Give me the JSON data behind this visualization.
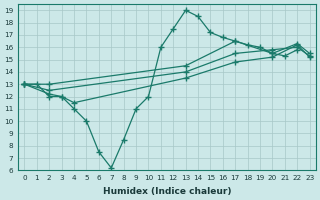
{
  "xlabel": "Humidex (Indice chaleur)",
  "bg_color": "#cce8e8",
  "line_color": "#1a7a6a",
  "grid_color": "#a8c8c8",
  "xlim": [
    -0.5,
    23.5
  ],
  "ylim": [
    6,
    19.5
  ],
  "xticks": [
    0,
    1,
    2,
    3,
    4,
    5,
    6,
    7,
    8,
    9,
    10,
    11,
    12,
    13,
    14,
    15,
    16,
    17,
    18,
    19,
    20,
    21,
    22,
    23
  ],
  "yticks": [
    6,
    7,
    8,
    9,
    10,
    11,
    12,
    13,
    14,
    15,
    16,
    17,
    18,
    19
  ],
  "lines": [
    {
      "x": [
        0,
        1,
        2,
        3,
        4,
        5,
        6,
        7,
        8,
        9,
        10,
        11,
        12,
        13,
        14,
        15,
        16,
        17,
        18,
        19,
        20,
        21,
        22
      ],
      "y": [
        13,
        13,
        12,
        12,
        11,
        10,
        7.5,
        6.2,
        8.5,
        11,
        12,
        16,
        17.5,
        19,
        18.5,
        17.2,
        16.8,
        16.5,
        16.2,
        16,
        15.5,
        15.3,
        15.8
      ]
    },
    {
      "x": [
        0,
        2,
        3,
        4,
        13,
        17,
        20,
        22,
        23
      ],
      "y": [
        13,
        12.2,
        12,
        11.5,
        13.5,
        14.8,
        15.2,
        16.2,
        15.2
      ]
    },
    {
      "x": [
        0,
        2,
        13,
        17,
        20,
        22,
        23
      ],
      "y": [
        13,
        12.5,
        14,
        15.5,
        15.8,
        16,
        15.3
      ]
    },
    {
      "x": [
        0,
        2,
        13,
        17,
        20,
        22,
        23
      ],
      "y": [
        13,
        13,
        14.5,
        16.5,
        15.5,
        16.3,
        15.5
      ]
    }
  ]
}
